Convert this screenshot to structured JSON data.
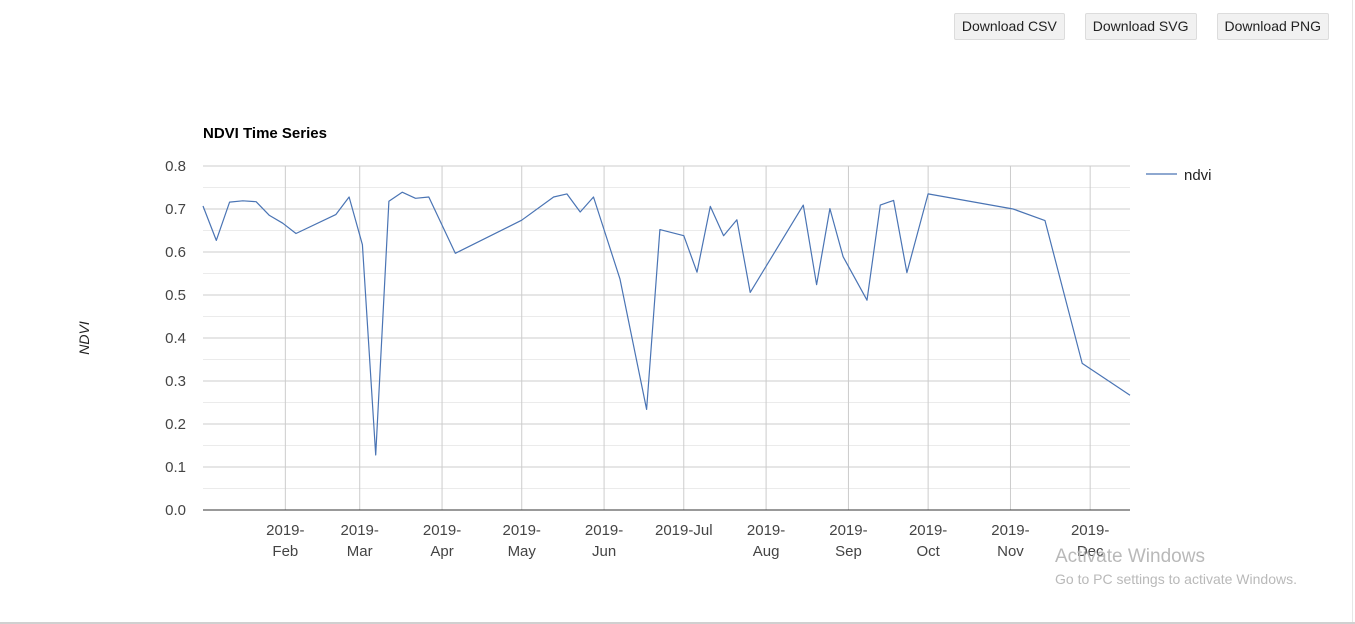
{
  "toolbar": {
    "download_csv": "Download CSV",
    "download_svg": "Download SVG",
    "download_png": "Download PNG"
  },
  "watermark": {
    "title": "Activate Windows",
    "subtitle": "Go to PC settings to activate Windows."
  },
  "chart_data": {
    "type": "line",
    "title": "NDVI Time Series",
    "xlabel": "",
    "ylabel": "NDVI",
    "ylim": [
      0,
      0.8
    ],
    "yticks": [
      "0.0",
      "0.1",
      "0.2",
      "0.3",
      "0.4",
      "0.5",
      "0.6",
      "0.7",
      "0.8"
    ],
    "xlim": [
      "2019-01-01",
      "2019-12-16"
    ],
    "xticks": [
      {
        "date": "2019-02-01",
        "line1": "2019-",
        "line2": "Feb"
      },
      {
        "date": "2019-03-01",
        "line1": "2019-",
        "line2": "Mar"
      },
      {
        "date": "2019-04-01",
        "line1": "2019-",
        "line2": "Apr"
      },
      {
        "date": "2019-05-01",
        "line1": "2019-",
        "line2": "May"
      },
      {
        "date": "2019-06-01",
        "line1": "2019-",
        "line2": "Jun"
      },
      {
        "date": "2019-07-01",
        "line1": "2019-Jul",
        "line2": ""
      },
      {
        "date": "2019-08-01",
        "line1": "2019-",
        "line2": "Aug"
      },
      {
        "date": "2019-09-01",
        "line1": "2019-",
        "line2": "Sep"
      },
      {
        "date": "2019-10-01",
        "line1": "2019-",
        "line2": "Oct"
      },
      {
        "date": "2019-11-01",
        "line1": "2019-",
        "line2": "Nov"
      },
      {
        "date": "2019-12-01",
        "line1": "2019-",
        "line2": "Dec"
      }
    ],
    "grid": true,
    "legend_position": "right",
    "series": [
      {
        "name": "ndvi",
        "color": "#4a74b4",
        "x": [
          "2019-01-01",
          "2019-01-06",
          "2019-01-11",
          "2019-01-16",
          "2019-01-21",
          "2019-01-26",
          "2019-01-31",
          "2019-02-05",
          "2019-02-20",
          "2019-02-25",
          "2019-03-02",
          "2019-03-07",
          "2019-03-12",
          "2019-03-17",
          "2019-03-22",
          "2019-03-27",
          "2019-04-06",
          "2019-05-01",
          "2019-05-13",
          "2019-05-18",
          "2019-05-23",
          "2019-05-28",
          "2019-06-07",
          "2019-06-17",
          "2019-06-22",
          "2019-07-01",
          "2019-07-06",
          "2019-07-11",
          "2019-07-16",
          "2019-07-21",
          "2019-07-26",
          "2019-08-15",
          "2019-08-20",
          "2019-08-25",
          "2019-08-30",
          "2019-09-08",
          "2019-09-13",
          "2019-09-18",
          "2019-09-23",
          "2019-10-01",
          "2019-11-02",
          "2019-11-14",
          "2019-11-28",
          "2019-12-16"
        ],
        "values": [
          0.707,
          0.627,
          0.716,
          0.719,
          0.717,
          0.685,
          0.667,
          0.643,
          0.687,
          0.728,
          0.617,
          0.128,
          0.718,
          0.739,
          0.725,
          0.728,
          0.597,
          0.674,
          0.728,
          0.735,
          0.693,
          0.728,
          0.537,
          0.234,
          0.652,
          0.638,
          0.553,
          0.706,
          0.638,
          0.675,
          0.506,
          0.709,
          0.524,
          0.701,
          0.589,
          0.488,
          0.709,
          0.72,
          0.552,
          0.735,
          0.7,
          0.673,
          0.341,
          0.267
        ]
      }
    ]
  }
}
